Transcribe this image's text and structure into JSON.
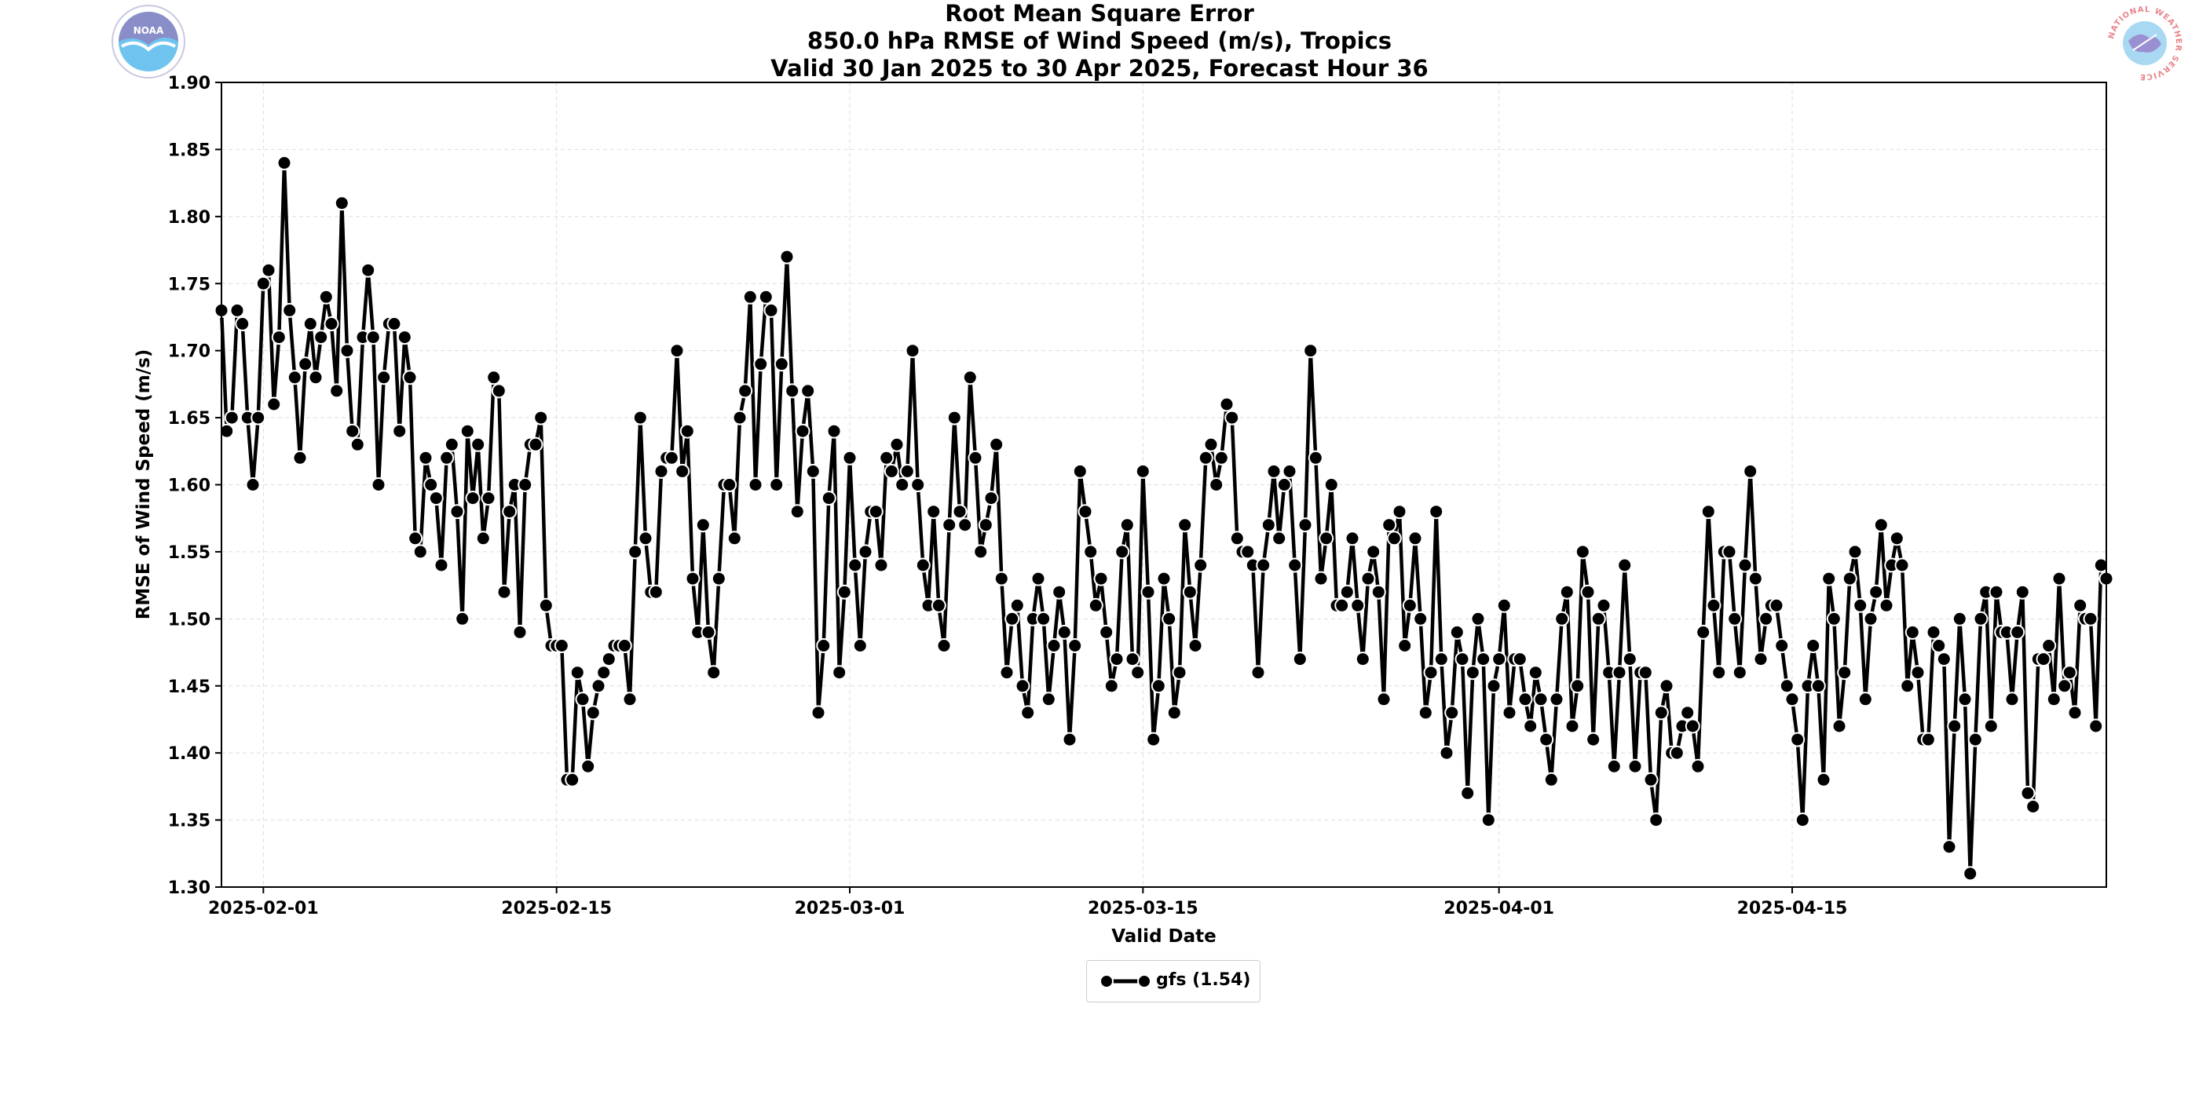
{
  "titles": {
    "line1": "Root Mean Square Error",
    "line2": "850.0 hPa RMSE of Wind Speed (m/s), Tropics",
    "line3": "Valid 30 Jan 2025 to 30 Apr 2025, Forecast Hour 36"
  },
  "logos": {
    "left": {
      "icon": "noaa-logo",
      "text": "NOAA"
    },
    "right": {
      "icon": "nws-logo",
      "text": "NATIONAL WEATHER SERVICE"
    }
  },
  "chart_data": {
    "type": "line",
    "title": "Root Mean Square Error",
    "xlabel": "Valid Date",
    "ylabel": "RMSE of Wind Speed (m/s)",
    "ylim": [
      1.3,
      1.9
    ],
    "xlim": [
      "2025-01-30",
      "2025-04-30"
    ],
    "y_ticks": [
      "1.30",
      "1.35",
      "1.40",
      "1.45",
      "1.50",
      "1.55",
      "1.60",
      "1.65",
      "1.70",
      "1.75",
      "1.80",
      "1.85",
      "1.90"
    ],
    "x_ticks": [
      "2025-02-01",
      "2025-02-15",
      "2025-03-01",
      "2025-03-15",
      "2025-04-01",
      "2025-04-15"
    ],
    "grid": true,
    "legend_position": "bottom-center",
    "series": [
      {
        "name": "gfs (1.54)",
        "color": "#000000",
        "marker": "circle",
        "x_start": "2025-01-30 00:00",
        "x_end": "2025-04-30 00:00",
        "x_step_hours": 6,
        "values": [
          1.73,
          1.64,
          1.65,
          1.73,
          1.72,
          1.65,
          1.6,
          1.65,
          1.75,
          1.76,
          1.66,
          1.71,
          1.84,
          1.73,
          1.68,
          1.62,
          1.69,
          1.72,
          1.68,
          1.71,
          1.74,
          1.72,
          1.67,
          1.81,
          1.7,
          1.64,
          1.63,
          1.71,
          1.76,
          1.71,
          1.6,
          1.68,
          1.72,
          1.72,
          1.64,
          1.71,
          1.68,
          1.56,
          1.55,
          1.62,
          1.6,
          1.59,
          1.54,
          1.62,
          1.63,
          1.58,
          1.5,
          1.64,
          1.59,
          1.63,
          1.56,
          1.59,
          1.68,
          1.67,
          1.52,
          1.58,
          1.6,
          1.49,
          1.6,
          1.63,
          1.63,
          1.65,
          1.51,
          1.48,
          1.48,
          1.48,
          1.38,
          1.38,
          1.46,
          1.44,
          1.39,
          1.43,
          1.45,
          1.46,
          1.47,
          1.48,
          1.48,
          1.48,
          1.44,
          1.55,
          1.65,
          1.56,
          1.52,
          1.52,
          1.61,
          1.62,
          1.62,
          1.7,
          1.61,
          1.64,
          1.53,
          1.49,
          1.57,
          1.49,
          1.46,
          1.53,
          1.6,
          1.6,
          1.56,
          1.65,
          1.67,
          1.74,
          1.6,
          1.69,
          1.74,
          1.73,
          1.6,
          1.69,
          1.77,
          1.67,
          1.58,
          1.64,
          1.67,
          1.61,
          1.43,
          1.48,
          1.59,
          1.64,
          1.46,
          1.52,
          1.62,
          1.54,
          1.48,
          1.55,
          1.58,
          1.58,
          1.54,
          1.62,
          1.61,
          1.63,
          1.6,
          1.61,
          1.7,
          1.6,
          1.54,
          1.51,
          1.58,
          1.51,
          1.48,
          1.57,
          1.65,
          1.58,
          1.57,
          1.68,
          1.62,
          1.55,
          1.57,
          1.59,
          1.63,
          1.53,
          1.46,
          1.5,
          1.51,
          1.45,
          1.43,
          1.5,
          1.53,
          1.5,
          1.44,
          1.48,
          1.52,
          1.49,
          1.41,
          1.48,
          1.61,
          1.58,
          1.55,
          1.51,
          1.53,
          1.49,
          1.45,
          1.47,
          1.55,
          1.57,
          1.47,
          1.46,
          1.61,
          1.52,
          1.41,
          1.45,
          1.53,
          1.5,
          1.43,
          1.46,
          1.57,
          1.52,
          1.48,
          1.54,
          1.62,
          1.63,
          1.6,
          1.62,
          1.66,
          1.65,
          1.56,
          1.55,
          1.55,
          1.54,
          1.46,
          1.54,
          1.57,
          1.61,
          1.56,
          1.6,
          1.61,
          1.54,
          1.47,
          1.57,
          1.7,
          1.62,
          1.53,
          1.56,
          1.6,
          1.51,
          1.51,
          1.52,
          1.56,
          1.51,
          1.47,
          1.53,
          1.55,
          1.52,
          1.44,
          1.57,
          1.56,
          1.58,
          1.48,
          1.51,
          1.56,
          1.5,
          1.43,
          1.46,
          1.58,
          1.47,
          1.4,
          1.43,
          1.49,
          1.47,
          1.37,
          1.46,
          1.5,
          1.47,
          1.35,
          1.45,
          1.47,
          1.51,
          1.43,
          1.47,
          1.47,
          1.44,
          1.42,
          1.46,
          1.44,
          1.41,
          1.38,
          1.44,
          1.5,
          1.52,
          1.42,
          1.45,
          1.55,
          1.52,
          1.41,
          1.5,
          1.51,
          1.46,
          1.39,
          1.46,
          1.54,
          1.47,
          1.39,
          1.46,
          1.46,
          1.38,
          1.35,
          1.43,
          1.45,
          1.4,
          1.4,
          1.42,
          1.43,
          1.42,
          1.39,
          1.49,
          1.58,
          1.51,
          1.46,
          1.55,
          1.55,
          1.5,
          1.46,
          1.54,
          1.61,
          1.53,
          1.47,
          1.5,
          1.51,
          1.51,
          1.48,
          1.45,
          1.44,
          1.41,
          1.35,
          1.45,
          1.48,
          1.45,
          1.38,
          1.53,
          1.5,
          1.42,
          1.46,
          1.53,
          1.55,
          1.51,
          1.44,
          1.5,
          1.52,
          1.57,
          1.51,
          1.54,
          1.56,
          1.54,
          1.45,
          1.49,
          1.46,
          1.41,
          1.41,
          1.49,
          1.48,
          1.47,
          1.33,
          1.42,
          1.5,
          1.44,
          1.31,
          1.41,
          1.5,
          1.52,
          1.42,
          1.52,
          1.49,
          1.49,
          1.44,
          1.49,
          1.52,
          1.37,
          1.36,
          1.47,
          1.47,
          1.48,
          1.44,
          1.53,
          1.45,
          1.46,
          1.43,
          1.51,
          1.5,
          1.5,
          1.42,
          1.54,
          1.53
        ]
      }
    ]
  }
}
